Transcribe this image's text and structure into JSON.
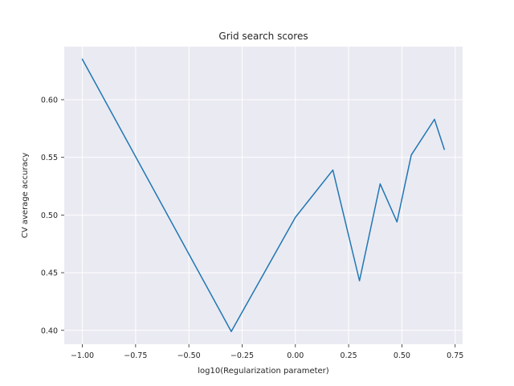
{
  "chart_data": {
    "type": "line",
    "title": "Grid search scores",
    "xlabel": "log10(Regularization parameter)",
    "ylabel": "CV average accuracy",
    "xlim": [
      -1.085,
      0.785
    ],
    "ylim": [
      0.388,
      0.646
    ],
    "grid": true,
    "x_ticks": [
      -1.0,
      -0.75,
      -0.5,
      -0.25,
      0.0,
      0.25,
      0.5,
      0.75
    ],
    "x_tick_labels": [
      "−1.00",
      "−0.75",
      "−0.50",
      "−0.25",
      "0.00",
      "0.25",
      "0.50",
      "0.75"
    ],
    "y_ticks": [
      0.4,
      0.45,
      0.5,
      0.55,
      0.6
    ],
    "y_tick_labels": [
      "0.40",
      "0.45",
      "0.50",
      "0.55",
      "0.60"
    ],
    "series": [
      {
        "x": [
          -1.0,
          -0.301,
          0.0,
          0.176,
          0.301,
          0.398,
          0.477,
          0.544,
          0.653,
          0.699
        ],
        "y": [
          0.635,
          0.399,
          0.498,
          0.539,
          0.443,
          0.527,
          0.494,
          0.552,
          0.583,
          0.557
        ],
        "color": "#1f77b4"
      }
    ],
    "colors": {
      "plot_background": "#eaeaf2",
      "grid": "#ffffff",
      "text": "#262626"
    }
  }
}
